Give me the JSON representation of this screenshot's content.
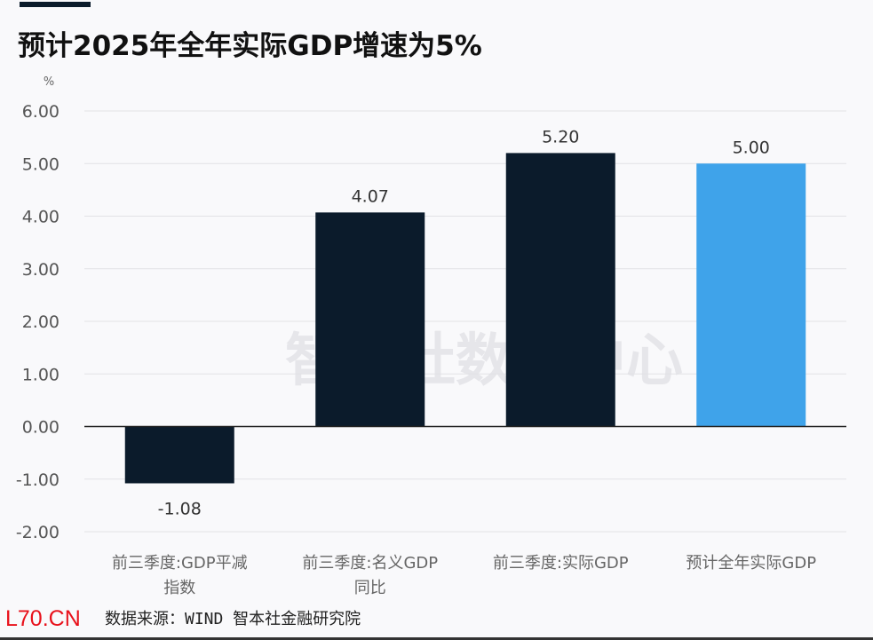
{
  "title": "预计2025年全年实际GDP增速为5%",
  "source": "数据来源：WIND 智本社金融研究院",
  "watermark": "智本社数据中心",
  "site_mark": "L70.CN",
  "chart_data": {
    "type": "bar",
    "title": "预计2025年全年实际GDP增速为5%",
    "ylabel": "%",
    "xlabel": "",
    "ylim": [
      -2,
      6
    ],
    "yticks": [
      "6.00",
      "5.00",
      "4.00",
      "3.00",
      "2.00",
      "1.00",
      "0.00",
      "-1.00",
      "-2.00"
    ],
    "categories": [
      [
        "前三季度:GDP平减",
        "指数"
      ],
      [
        "前三季度:名义GDP",
        "同比"
      ],
      [
        "前三季度:实际GDP"
      ],
      [
        "预计全年实际GDP"
      ]
    ],
    "values": [
      -1.08,
      4.07,
      5.2,
      5.0
    ],
    "data_labels": [
      "-1.08",
      "4.07",
      "5.20",
      "5.00"
    ],
    "colors": [
      "#0b1b2b",
      "#0b1b2b",
      "#0b1b2b",
      "#3fa3ea"
    ],
    "grid": true,
    "legend": "none"
  }
}
